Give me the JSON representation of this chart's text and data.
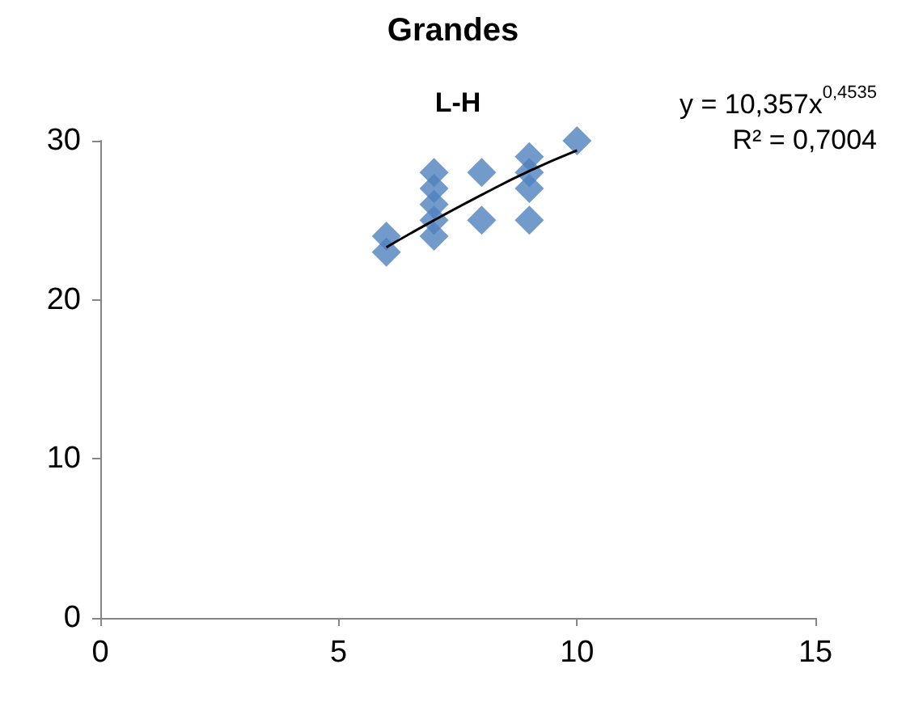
{
  "chart_data": {
    "type": "scatter",
    "title": "Grandes",
    "subtitle": "L-H",
    "xlim": [
      0,
      15
    ],
    "xticks": [
      0,
      5,
      10,
      15
    ],
    "ylim": [
      0,
      30
    ],
    "yticks": [
      0,
      10,
      20,
      30
    ],
    "grid": false,
    "marker": "diamond",
    "series": [
      {
        "type": "scatter",
        "color": "#4f81bd",
        "x": [
          6,
          6,
          7,
          7,
          7,
          7,
          7,
          8,
          8,
          9,
          9,
          9,
          9,
          10
        ],
        "values": [
          24,
          23,
          28,
          27,
          26,
          25,
          24,
          28,
          25,
          29,
          28,
          27,
          25,
          30
        ]
      },
      {
        "type": "line",
        "color": "#000000",
        "marker": "none",
        "line_style": "solid",
        "x": [
          6,
          7,
          8,
          9,
          10
        ],
        "values": [
          23.3,
          25,
          26.6,
          28.1,
          29.4
        ]
      }
    ],
    "annotations": [
      "y = 10,357x$^{0,4535}$",
      "R² = 0,7004"
    ]
  }
}
